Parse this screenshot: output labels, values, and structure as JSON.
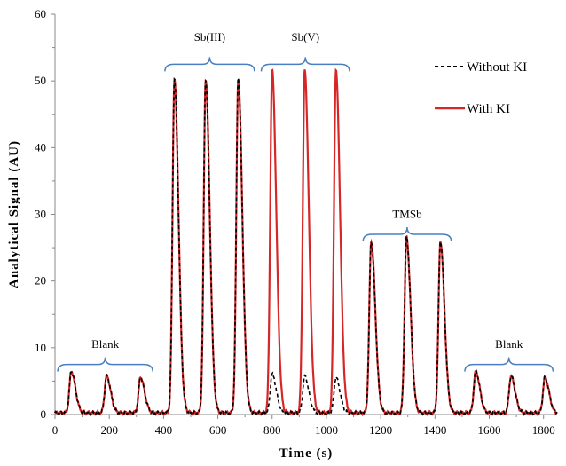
{
  "chart_data": {
    "type": "line",
    "title": "",
    "xlabel": "Time (s)",
    "ylabel": "Analytical Signal (AU)",
    "xlim": [
      0,
      1850
    ],
    "ylim": [
      0,
      60
    ],
    "xticks": [
      0,
      200,
      400,
      600,
      800,
      1000,
      1200,
      1400,
      1600,
      1800
    ],
    "yticks": [
      0,
      10,
      20,
      30,
      40,
      50,
      60
    ],
    "grid": false,
    "legend_position": "top-right",
    "series": [
      {
        "name": "Without KI",
        "color": "#000000",
        "style": "dashed",
        "peaks": [
          {
            "center": 60,
            "height": 6.2
          },
          {
            "center": 190,
            "height": 5.5
          },
          {
            "center": 315,
            "height": 5.3
          },
          {
            "center": 440,
            "height": 50.0
          },
          {
            "center": 555,
            "height": 50.0
          },
          {
            "center": 675,
            "height": 50.3
          },
          {
            "center": 800,
            "height": 5.8
          },
          {
            "center": 920,
            "height": 5.5
          },
          {
            "center": 1035,
            "height": 5.3
          },
          {
            "center": 1165,
            "height": 25.7
          },
          {
            "center": 1295,
            "height": 26.3
          },
          {
            "center": 1420,
            "height": 25.7
          },
          {
            "center": 1550,
            "height": 6.2
          },
          {
            "center": 1680,
            "height": 5.5
          },
          {
            "center": 1805,
            "height": 5.3
          }
        ]
      },
      {
        "name": "With KI",
        "color": "#d62728",
        "style": "solid",
        "peaks": [
          {
            "center": 60,
            "height": 6.2
          },
          {
            "center": 190,
            "height": 5.5
          },
          {
            "center": 315,
            "height": 5.3
          },
          {
            "center": 440,
            "height": 50.0
          },
          {
            "center": 555,
            "height": 50.0
          },
          {
            "center": 675,
            "height": 50.0
          },
          {
            "center": 800,
            "height": 51.3
          },
          {
            "center": 920,
            "height": 51.3
          },
          {
            "center": 1035,
            "height": 51.3
          },
          {
            "center": 1165,
            "height": 25.7
          },
          {
            "center": 1295,
            "height": 26.3
          },
          {
            "center": 1420,
            "height": 25.7
          },
          {
            "center": 1550,
            "height": 6.2
          },
          {
            "center": 1680,
            "height": 5.5
          },
          {
            "center": 1805,
            "height": 5.3
          }
        ]
      }
    ],
    "annotations": [
      {
        "label": "Blank",
        "x_start": 10,
        "x_end": 360,
        "y": 7.5,
        "label_y": 10
      },
      {
        "label": "Sb(III)",
        "x_start": 405,
        "x_end": 735,
        "y": 52.5,
        "label_y": 56
      },
      {
        "label": "Sb(V)",
        "x_start": 760,
        "x_end": 1085,
        "y": 52.5,
        "label_y": 56
      },
      {
        "label": "TMSb",
        "x_start": 1135,
        "x_end": 1460,
        "y": 27,
        "label_y": 29.5
      },
      {
        "label": "Blank",
        "x_start": 1510,
        "x_end": 1835,
        "y": 7.5,
        "label_y": 10
      }
    ]
  }
}
